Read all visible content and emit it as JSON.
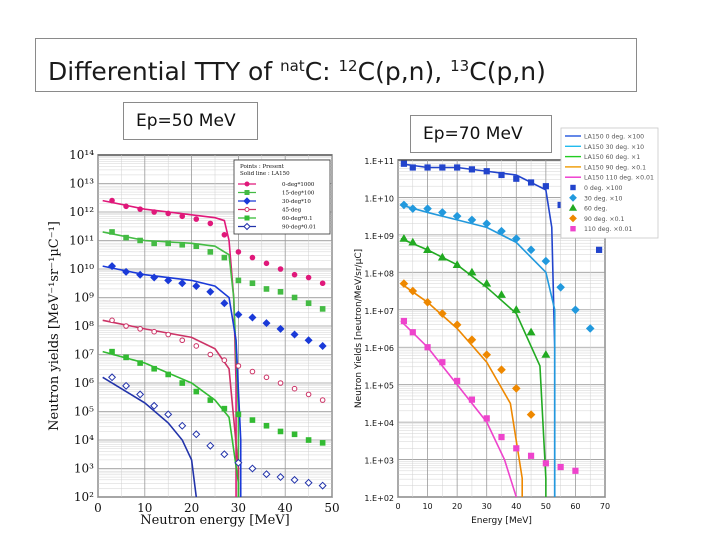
{
  "slide": {
    "title_prefix": "Differential TTY of ",
    "title_sup1": "nat",
    "title_mid1": "C: ",
    "title_sup2": "12",
    "title_mid2": "C(p,n), ",
    "title_sup3": "13",
    "title_end": "C(p,n)"
  },
  "panels": {
    "left_label": "Ep=50 MeV",
    "right_label": "Ep=70 MeV"
  },
  "chart_data": [
    {
      "type": "scatter",
      "title": "",
      "xlabel": "Neutron energy [MeV]",
      "ylabel": "Neutron yields [MeV⁻¹sr⁻¹µC⁻¹]",
      "xlim": [
        0,
        50
      ],
      "ylim_log10": [
        2,
        14
      ],
      "x_ticks": [
        "0",
        "10",
        "20",
        "30",
        "40",
        "50"
      ],
      "y_ticks": [
        "10²",
        "10³",
        "10⁴",
        "10⁵",
        "10⁶",
        "10⁷",
        "10⁸",
        "10⁹",
        "10¹⁰",
        "10¹¹",
        "10¹²",
        "10¹³",
        "10¹⁴"
      ],
      "grid": true,
      "legend_position": "top-right",
      "legend": {
        "header_points": "Points : Present",
        "header_lines": "Solid line : LA150",
        "entries": [
          "0-deg*1000",
          "15-deg*100",
          "30-deg*10",
          "45-deg",
          "60-deg*0.1",
          "90-deg*0.01"
        ]
      },
      "series": [
        {
          "name": "0-deg*1000",
          "color": "#e0187a",
          "marker": "circle",
          "x": [
            3,
            6,
            9,
            12,
            15,
            18,
            21,
            24,
            27,
            30,
            33,
            36,
            39,
            42,
            45,
            48
          ],
          "y_log10": [
            12.4,
            12.2,
            12.1,
            12.0,
            11.95,
            11.85,
            11.75,
            11.6,
            11.2,
            10.6,
            10.4,
            10.2,
            10.0,
            9.8,
            9.7,
            9.5
          ],
          "model_x": [
            1,
            10,
            20,
            25,
            27,
            28,
            29,
            29.5
          ],
          "model_y_log10": [
            12.4,
            12.1,
            11.9,
            11.8,
            11.7,
            11.0,
            9.0,
            6.0
          ]
        },
        {
          "name": "15-deg*100",
          "color": "#44bb44",
          "marker": "square",
          "x": [
            3,
            6,
            9,
            12,
            15,
            18,
            21,
            24,
            27,
            30,
            33,
            36,
            39,
            42,
            45,
            48
          ],
          "y_log10": [
            11.3,
            11.1,
            11.0,
            10.9,
            10.9,
            10.85,
            10.8,
            10.6,
            10.4,
            9.6,
            9.5,
            9.3,
            9.2,
            9.0,
            8.8,
            8.6
          ],
          "model_x": [
            1,
            10,
            20,
            25,
            28,
            29,
            30
          ],
          "model_y_log10": [
            11.3,
            11.0,
            10.9,
            10.8,
            10.5,
            9.0,
            5.0
          ]
        },
        {
          "name": "30-deg*10",
          "color": "#1a3ad8",
          "marker": "diamond",
          "x": [
            3,
            6,
            9,
            12,
            15,
            18,
            21,
            24,
            27,
            30,
            33,
            36,
            39,
            42,
            45,
            48
          ],
          "y_log10": [
            10.1,
            9.9,
            9.8,
            9.7,
            9.6,
            9.5,
            9.4,
            9.2,
            8.8,
            8.4,
            8.3,
            8.1,
            7.9,
            7.7,
            7.5,
            7.3
          ],
          "model_x": [
            1,
            10,
            20,
            25,
            28,
            29.5,
            30.5
          ],
          "model_y_log10": [
            10.1,
            9.8,
            9.6,
            9.4,
            9.0,
            7.5,
            4.0
          ]
        },
        {
          "name": "45-deg",
          "color": "#cc3366",
          "marker": "open-circle",
          "x": [
            3,
            6,
            9,
            12,
            15,
            18,
            21,
            24,
            27,
            30,
            33,
            36,
            39,
            42,
            45,
            48
          ],
          "y_log10": [
            8.2,
            8.0,
            7.9,
            7.8,
            7.7,
            7.5,
            7.3,
            7.0,
            6.8,
            6.6,
            6.4,
            6.2,
            6.0,
            5.8,
            5.6,
            5.4
          ],
          "model_x": [
            1,
            10,
            20,
            25,
            28,
            30
          ],
          "model_y_log10": [
            8.2,
            7.9,
            7.6,
            7.2,
            6.5,
            3.0
          ]
        },
        {
          "name": "60-deg*0.1",
          "color": "#33bb33",
          "marker": "filled-square",
          "x": [
            3,
            6,
            9,
            12,
            15,
            18,
            21,
            24,
            27,
            30,
            33,
            36,
            39,
            42,
            45,
            48
          ],
          "y_log10": [
            7.1,
            6.9,
            6.7,
            6.5,
            6.3,
            6.0,
            5.7,
            5.4,
            5.1,
            4.9,
            4.7,
            4.5,
            4.3,
            4.2,
            4.0,
            3.9
          ],
          "model_x": [
            1,
            10,
            20,
            25,
            28,
            30
          ],
          "model_y_log10": [
            7.1,
            6.7,
            6.0,
            5.4,
            4.8,
            2.5
          ]
        },
        {
          "name": "90-deg*0.01",
          "color": "#2233aa",
          "marker": "open-diamond",
          "x": [
            3,
            6,
            9,
            12,
            15,
            18,
            21,
            24,
            27,
            30,
            33,
            36,
            39,
            42,
            45,
            48
          ],
          "y_log10": [
            6.2,
            5.9,
            5.6,
            5.2,
            4.9,
            4.5,
            4.2,
            3.8,
            3.5,
            3.2,
            3.0,
            2.8,
            2.7,
            2.6,
            2.5,
            2.4
          ],
          "model_x": [
            1,
            10,
            15,
            18,
            20,
            21
          ],
          "model_y_log10": [
            6.2,
            5.3,
            4.6,
            4.0,
            3.3,
            2.0
          ]
        }
      ]
    },
    {
      "type": "scatter",
      "title": "",
      "xlabel": "Energy [MeV]",
      "ylabel": "Neutron Yields [neutron/MeV/sr/µC]",
      "xlim": [
        0,
        70
      ],
      "ylim_log10": [
        2,
        11
      ],
      "x_ticks": [
        "0",
        "10",
        "20",
        "30",
        "40",
        "50",
        "60",
        "70"
      ],
      "y_ticks": [
        "1.E+02",
        "1.E+03",
        "1.E+04",
        "1.E+05",
        "1.E+06",
        "1.E+07",
        "1.E+08",
        "1.E+09",
        "1.E+10",
        "1.E+11"
      ],
      "grid": true,
      "legend_position": "outside-top-right",
      "legend": {
        "entries": [
          "LA150 0 deg. ×100",
          "LA150 30 deg. ×10",
          "LA150 60 deg. ×1",
          "LA150 90 deg. ×0.1",
          "LA150 110 deg. ×0.01",
          "0 deg. ×100",
          "30 deg. ×10",
          "60 deg.",
          "90 deg. ×0.1",
          "110 deg. ×0.01"
        ]
      },
      "series": [
        {
          "name": "0 deg. ×100",
          "color": "#2244cc",
          "marker": "square",
          "x": [
            2,
            5,
            10,
            15,
            20,
            25,
            30,
            35,
            40,
            45,
            50,
            55,
            60,
            65,
            68
          ],
          "y_log10": [
            10.9,
            10.8,
            10.8,
            10.8,
            10.8,
            10.75,
            10.7,
            10.6,
            10.5,
            10.4,
            10.3,
            9.8,
            9.4,
            9.0,
            8.6
          ],
          "model_x": [
            1,
            10,
            20,
            30,
            40,
            50,
            52,
            53
          ],
          "model_y_log10": [
            10.9,
            10.8,
            10.8,
            10.7,
            10.6,
            10.2,
            9.2,
            6.0
          ]
        },
        {
          "name": "30 deg. ×10",
          "color": "#2299dd",
          "marker": "diamond",
          "x": [
            2,
            5,
            10,
            15,
            20,
            25,
            30,
            35,
            40,
            45,
            50,
            55,
            60,
            65
          ],
          "y_log10": [
            9.8,
            9.7,
            9.7,
            9.6,
            9.5,
            9.4,
            9.3,
            9.1,
            8.9,
            8.6,
            8.3,
            7.6,
            7.0,
            6.5
          ],
          "model_x": [
            1,
            10,
            20,
            30,
            40,
            50,
            53
          ],
          "model_y_log10": [
            9.8,
            9.6,
            9.4,
            9.2,
            8.8,
            8.0,
            7.0
          ]
        },
        {
          "name": "60 deg.",
          "color": "#22aa22",
          "marker": "triangle",
          "x": [
            2,
            5,
            10,
            15,
            20,
            25,
            30,
            35,
            40,
            45,
            50
          ],
          "y_log10": [
            8.9,
            8.8,
            8.6,
            8.4,
            8.2,
            8.0,
            7.7,
            7.4,
            7.0,
            6.4,
            5.8
          ],
          "model_x": [
            1,
            10,
            20,
            30,
            40,
            48,
            50
          ],
          "model_y_log10": [
            8.9,
            8.6,
            8.2,
            7.6,
            6.9,
            5.5,
            2.5
          ]
        },
        {
          "name": "90 deg. ×0.1",
          "color": "#ee8800",
          "marker": "diamond",
          "x": [
            2,
            5,
            10,
            15,
            20,
            25,
            30,
            35,
            40,
            45
          ],
          "y_log10": [
            7.7,
            7.5,
            7.2,
            6.9,
            6.6,
            6.2,
            5.8,
            5.4,
            4.9,
            4.2
          ],
          "model_x": [
            1,
            10,
            20,
            30,
            38,
            42
          ],
          "model_y_log10": [
            7.7,
            7.2,
            6.5,
            5.6,
            4.5,
            2.5
          ]
        },
        {
          "name": "110 deg. ×0.01",
          "color": "#ee44cc",
          "marker": "square",
          "x": [
            2,
            5,
            10,
            15,
            20,
            25,
            30,
            35,
            40,
            45,
            50,
            55,
            60
          ],
          "y_log10": [
            6.7,
            6.4,
            6.0,
            5.6,
            5.1,
            4.6,
            4.1,
            3.6,
            3.3,
            3.1,
            2.9,
            2.8,
            2.7
          ],
          "model_x": [
            1,
            10,
            20,
            30,
            36,
            40
          ],
          "model_y_log10": [
            6.7,
            6.0,
            5.0,
            4.0,
            3.0,
            2.0
          ]
        }
      ]
    }
  ]
}
